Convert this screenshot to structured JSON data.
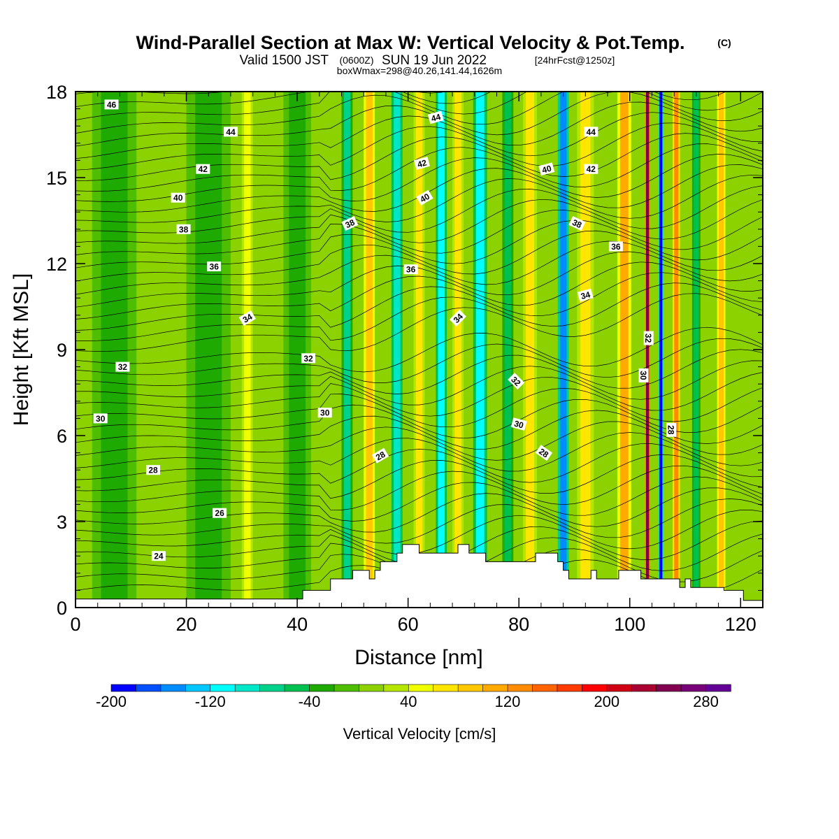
{
  "header": {
    "title": "Wind-Parallel Section at Max W: Vertical Velocity & Pot.Temp.",
    "copyright": "(C)",
    "valid_prefix": "Valid 1500 JST",
    "valid_utc": "(0600Z)",
    "valid_date": "SUN 19 Jun 2022",
    "forecast": "[24hrFcst@1250z]",
    "boxmax": "boxWmax=298@40.26,141.44,1626m"
  },
  "chart_data": {
    "type": "heatmap",
    "xlabel": "Distance [nm]",
    "ylabel": "Height [Kft MSL]",
    "xlim": [
      0,
      124
    ],
    "ylim": [
      0,
      18
    ],
    "xticks": [
      0,
      20,
      40,
      60,
      80,
      100,
      120
    ],
    "yticks": [
      0,
      3,
      6,
      9,
      12,
      15,
      18
    ],
    "colorbar": {
      "label": "Vertical Velocity [cm/s]",
      "tick_values": [
        -200,
        -120,
        -40,
        40,
        120,
        200,
        280
      ],
      "tick_labels": [
        "-200",
        "-120",
        "-40",
        "40",
        "120",
        "200",
        "280"
      ],
      "levels": [
        -200,
        -180,
        -160,
        -140,
        -120,
        -100,
        -80,
        -60,
        -40,
        -20,
        0,
        20,
        40,
        60,
        80,
        100,
        120,
        140,
        160,
        180,
        200,
        220,
        240,
        260,
        280,
        300
      ],
      "colors": [
        "#0000ff",
        "#0050ff",
        "#008cff",
        "#00c8ff",
        "#00ffff",
        "#00e6c8",
        "#00d28c",
        "#00c050",
        "#1eaa00",
        "#50be00",
        "#8cd200",
        "#b4e600",
        "#f0ff00",
        "#ffe600",
        "#ffc800",
        "#ffaa00",
        "#ff8c00",
        "#ff6400",
        "#ff3c00",
        "#ff0000",
        "#d20014",
        "#aa0032",
        "#820050",
        "#780078",
        "#640096"
      ]
    },
    "bands": [
      {
        "x": 7,
        "w": 8,
        "v": -30
      },
      {
        "x": 24,
        "w": 8,
        "v": -30
      },
      {
        "x": 31,
        "w": 2,
        "v": 55
      },
      {
        "x": 40,
        "w": 5,
        "v": -25
      },
      {
        "x": 49,
        "w": 2,
        "v": -75
      },
      {
        "x": 53,
        "w": 2,
        "v": 80
      },
      {
        "x": 58,
        "w": 2,
        "v": -95
      },
      {
        "x": 62,
        "w": 2,
        "v": 70
      },
      {
        "x": 66,
        "w": 2,
        "v": -105
      },
      {
        "x": 69,
        "w": 2,
        "v": 65
      },
      {
        "x": 73,
        "w": 2.5,
        "v": -115
      },
      {
        "x": 78,
        "w": 2,
        "v": -60
      },
      {
        "x": 82,
        "w": 2.5,
        "v": 65
      },
      {
        "x": 88,
        "w": 2,
        "v": -145
      },
      {
        "x": 92,
        "w": 3,
        "v": 75
      },
      {
        "x": 99,
        "w": 2.5,
        "v": 115
      },
      {
        "x": 103.2,
        "w": 0.9,
        "v": 240
      },
      {
        "x": 105.6,
        "w": 0.9,
        "v": -190
      },
      {
        "x": 108.4,
        "w": 1.3,
        "v": 130
      },
      {
        "x": 112,
        "w": 1.5,
        "v": -45
      },
      {
        "x": 116.5,
        "w": 1.5,
        "v": 95
      }
    ],
    "terrain": [
      [
        0,
        0.3
      ],
      [
        40,
        0.3
      ],
      [
        41,
        0.6
      ],
      [
        45,
        0.6
      ],
      [
        46,
        1.0
      ],
      [
        49,
        1.0
      ],
      [
        50,
        1.3
      ],
      [
        52,
        1.3
      ],
      [
        53,
        1.0
      ],
      [
        54,
        1.3
      ],
      [
        55,
        1.6
      ],
      [
        57,
        1.6
      ],
      [
        58,
        1.9
      ],
      [
        59,
        2.2
      ],
      [
        61,
        2.2
      ],
      [
        62,
        1.9
      ],
      [
        65,
        1.9
      ],
      [
        68,
        1.9
      ],
      [
        69,
        2.2
      ],
      [
        70,
        2.2
      ],
      [
        71,
        1.9
      ],
      [
        73,
        1.9
      ],
      [
        74,
        1.6
      ],
      [
        82,
        1.6
      ],
      [
        83,
        1.9
      ],
      [
        86,
        1.9
      ],
      [
        87,
        1.6
      ],
      [
        88,
        1.3
      ],
      [
        89,
        1.0
      ],
      [
        92,
        1.0
      ],
      [
        93,
        1.3
      ],
      [
        94,
        1.0
      ],
      [
        97,
        1.0
      ],
      [
        98,
        1.3
      ],
      [
        101,
        1.3
      ],
      [
        102,
        1.0
      ],
      [
        108,
        1.0
      ],
      [
        109,
        0.7
      ],
      [
        110,
        1.0
      ],
      [
        111,
        0.7
      ],
      [
        116,
        0.7
      ],
      [
        117,
        0.6
      ],
      [
        120,
        0.6
      ],
      [
        120.5,
        0.25
      ],
      [
        124,
        0.25
      ]
    ],
    "contour_labels": [
      {
        "text": "46",
        "x": 6.5,
        "y": 17.55,
        "rot": 0
      },
      {
        "text": "44",
        "x": 28,
        "y": 16.6,
        "rot": 0
      },
      {
        "text": "44",
        "x": 65,
        "y": 17.1,
        "rot": -15
      },
      {
        "text": "44",
        "x": 93,
        "y": 16.6,
        "rot": 0
      },
      {
        "text": "42",
        "x": 23,
        "y": 15.3,
        "rot": 0
      },
      {
        "text": "42",
        "x": 62.5,
        "y": 15.5,
        "rot": -15
      },
      {
        "text": "42",
        "x": 93,
        "y": 15.3,
        "rot": 0
      },
      {
        "text": "40",
        "x": 18.5,
        "y": 14.3,
        "rot": 0
      },
      {
        "text": "40",
        "x": 63,
        "y": 14.3,
        "rot": -30
      },
      {
        "text": "40",
        "x": 85,
        "y": 15.3,
        "rot": -15
      },
      {
        "text": "38",
        "x": 19.5,
        "y": 13.2,
        "rot": 0
      },
      {
        "text": "38",
        "x": 49.5,
        "y": 13.4,
        "rot": -25
      },
      {
        "text": "38",
        "x": 90.5,
        "y": 13.4,
        "rot": 25
      },
      {
        "text": "36",
        "x": 25,
        "y": 11.9,
        "rot": 0
      },
      {
        "text": "36",
        "x": 60.5,
        "y": 11.8,
        "rot": 0
      },
      {
        "text": "36",
        "x": 97.5,
        "y": 12.6,
        "rot": 0
      },
      {
        "text": "34",
        "x": 31,
        "y": 10.1,
        "rot": -30
      },
      {
        "text": "34",
        "x": 69,
        "y": 10.1,
        "rot": -45
      },
      {
        "text": "34",
        "x": 92,
        "y": 10.9,
        "rot": -15
      },
      {
        "text": "32",
        "x": 8.5,
        "y": 8.4,
        "rot": 0
      },
      {
        "text": "32",
        "x": 42,
        "y": 8.7,
        "rot": 0
      },
      {
        "text": "32",
        "x": 79.5,
        "y": 7.9,
        "rot": 45
      },
      {
        "text": "32",
        "x": 103.4,
        "y": 9.4,
        "rot": 90
      },
      {
        "text": "30",
        "x": 4.5,
        "y": 6.6,
        "rot": 0
      },
      {
        "text": "30",
        "x": 45,
        "y": 6.8,
        "rot": 0
      },
      {
        "text": "30",
        "x": 80,
        "y": 6.4,
        "rot": 15
      },
      {
        "text": "30",
        "x": 102.5,
        "y": 8.1,
        "rot": 90
      },
      {
        "text": "28",
        "x": 14,
        "y": 4.8,
        "rot": 0
      },
      {
        "text": "28",
        "x": 55,
        "y": 5.3,
        "rot": -30
      },
      {
        "text": "28",
        "x": 84.5,
        "y": 5.4,
        "rot": 35
      },
      {
        "text": "28",
        "x": 107.5,
        "y": 6.2,
        "rot": 90
      },
      {
        "text": "26",
        "x": 26,
        "y": 3.3,
        "rot": 0
      },
      {
        "text": "24",
        "x": 15,
        "y": 1.8,
        "rot": 0
      }
    ]
  }
}
